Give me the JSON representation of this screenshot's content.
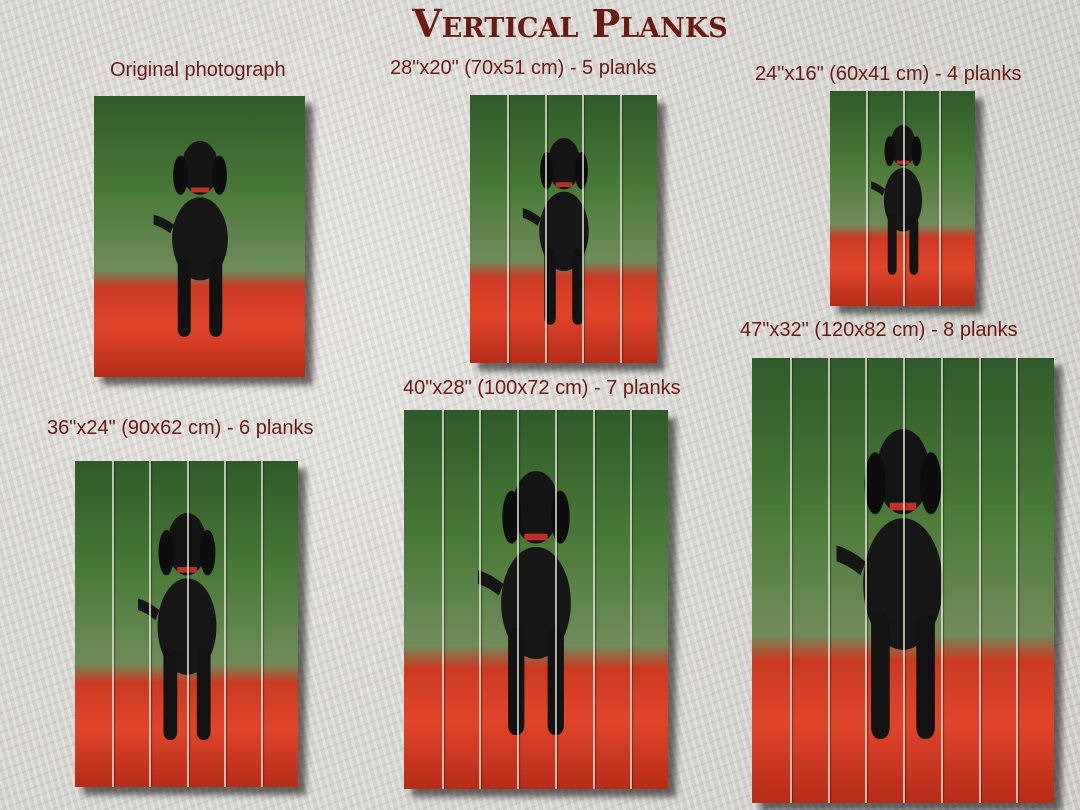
{
  "title": "Vertical Planks",
  "colors": {
    "text": "#6b1a12",
    "water": "#4a7a38",
    "boat": "#e0452a"
  },
  "panels": [
    {
      "id": "original",
      "label": "Original photograph",
      "planks": 0
    },
    {
      "id": "28x20",
      "label": "28\"x20\" (70x51 cm) - 5 planks",
      "planks": 5
    },
    {
      "id": "24x16",
      "label": "24\"x16\" (60x41 cm) - 4 planks",
      "planks": 4
    },
    {
      "id": "36x24",
      "label": "36\"x24\" (90x62 cm) - 6 planks",
      "planks": 6
    },
    {
      "id": "40x28",
      "label": "40\"x28\" (100x72 cm) - 7 planks",
      "planks": 7
    },
    {
      "id": "47x32",
      "label": "47\"x32\" (120x82 cm) - 8 planks",
      "planks": 8
    }
  ]
}
